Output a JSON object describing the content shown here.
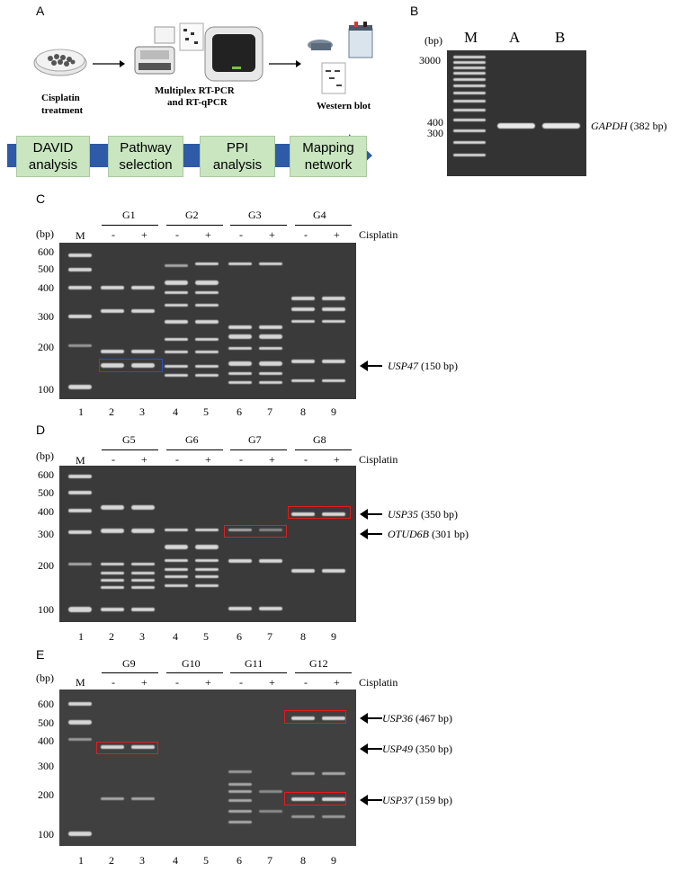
{
  "panels": {
    "a": "A",
    "b": "B",
    "c": "C",
    "d": "D",
    "e": "E"
  },
  "panel_a": {
    "step1": "Cisplatin",
    "step1b": "treatment",
    "step2": "Multiplex RT-PCR",
    "step2b": "and RT-qPCR",
    "step3": "Western blot",
    "flow": [
      {
        "l1": "DAVID",
        "l2": "analysis"
      },
      {
        "l1": "Pathway",
        "l2": "selection"
      },
      {
        "l1": "PPI",
        "l2": "analysis"
      },
      {
        "l1": "Mapping",
        "l2": "network"
      }
    ]
  },
  "panel_b": {
    "bp": "(bp)",
    "lanes": [
      "M",
      "A",
      "B"
    ],
    "ladder": [
      "3000",
      "400",
      "300"
    ],
    "gene": "GAPDH",
    "size": "(382 bp)"
  },
  "common": {
    "bp": "(bp)",
    "m": "M",
    "treatment": "Cisplatin",
    "minus": "-",
    "plus": "+"
  },
  "panel_c": {
    "groups": [
      "G1",
      "G2",
      "G3",
      "G4"
    ],
    "ladder": [
      "600",
      "500",
      "400",
      "300",
      "200",
      "100"
    ],
    "lanes": [
      "1",
      "2",
      "3",
      "4",
      "5",
      "6",
      "7",
      "8",
      "9"
    ],
    "anno1_gene": "USP47",
    "anno1_size": "(150 bp)"
  },
  "panel_d": {
    "groups": [
      "G5",
      "G6",
      "G7",
      "G8"
    ],
    "ladder": [
      "600",
      "500",
      "400",
      "300",
      "200",
      "100"
    ],
    "lanes": [
      "1",
      "2",
      "3",
      "4",
      "5",
      "6",
      "7",
      "8",
      "9"
    ],
    "anno1_gene": "USP35",
    "anno1_size": "(350 bp)",
    "anno2_gene": "OTUD6B",
    "anno2_size": "(301 bp)"
  },
  "panel_e": {
    "groups": [
      "G9",
      "G10",
      "G11",
      "G12"
    ],
    "ladder": [
      "600",
      "500",
      "400",
      "300",
      "200",
      "100"
    ],
    "lanes": [
      "1",
      "2",
      "3",
      "4",
      "5",
      "6",
      "7",
      "8",
      "9"
    ],
    "anno1_gene": "USP36",
    "anno1_size": "(467 bp)",
    "anno2_gene": "USP49",
    "anno2_size": "(350 bp)",
    "anno3_gene": "USP37",
    "anno3_size": "(159 bp)"
  }
}
